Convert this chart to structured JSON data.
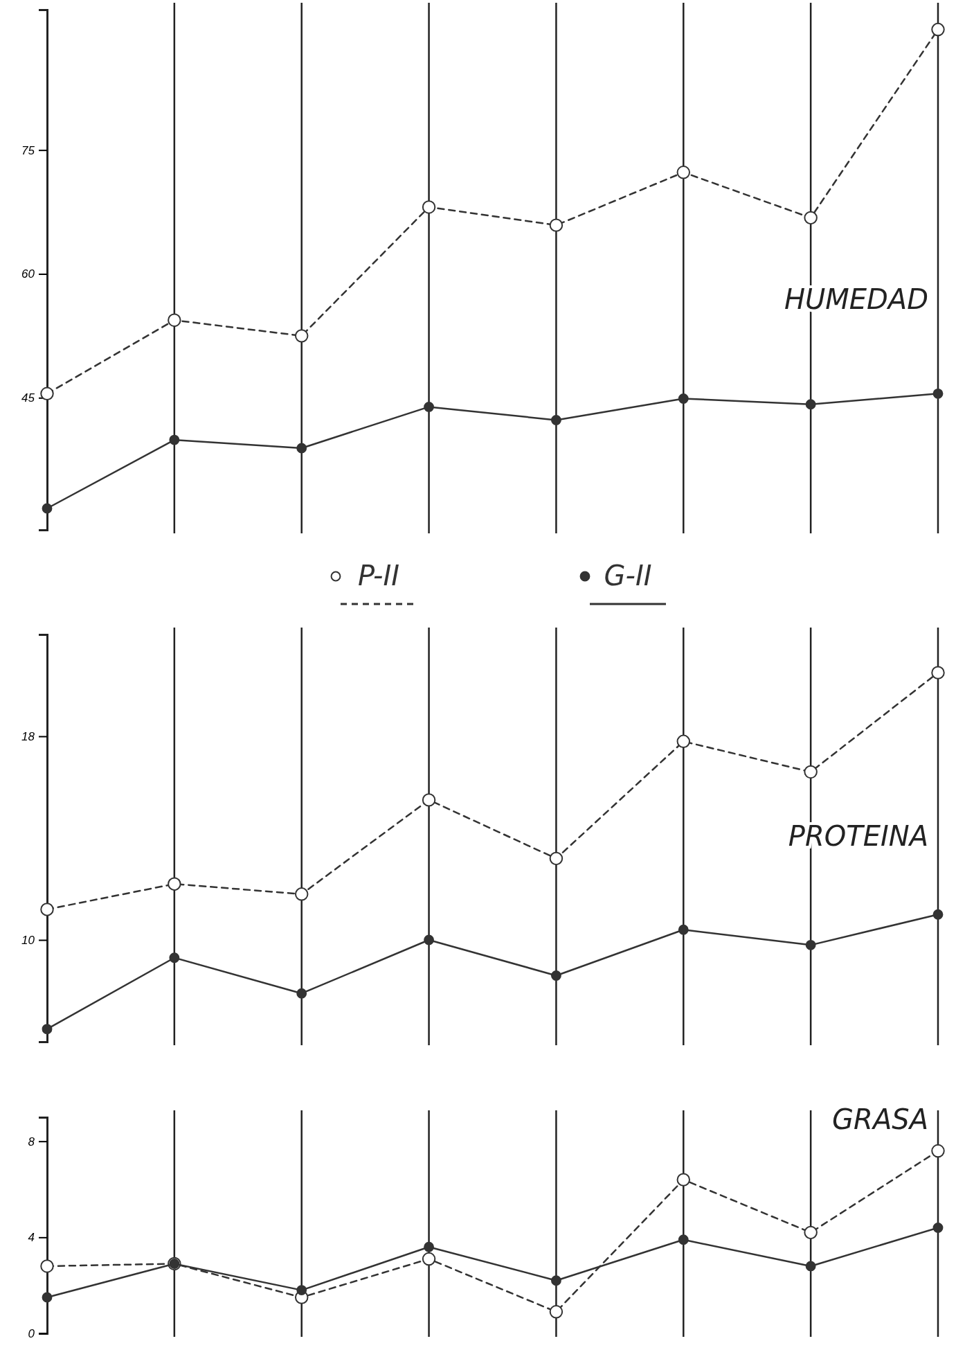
{
  "chart_data": [
    {
      "type": "line",
      "title": "HUMEDAD",
      "categories": [
        null,
        null,
        null,
        null,
        null,
        null,
        null,
        null
      ],
      "ylim": [
        29,
        92
      ],
      "yticks": [
        45,
        60,
        75
      ],
      "grid": "x",
      "legend": "bottom",
      "marker": "circle",
      "series": [
        {
          "name": "P-II",
          "color": "#333333",
          "line_style": "dashed",
          "values": [
            45.5,
            54.4,
            52.5,
            68.1,
            65.9,
            72.3,
            66.8,
            89.6
          ]
        },
        {
          "name": "G-II",
          "color": "#333333",
          "line_style": "solid",
          "values": [
            31.6,
            39.9,
            38.9,
            43.9,
            42.3,
            44.9,
            44.2,
            45.5
          ]
        }
      ]
    },
    {
      "type": "line",
      "title": "PROTEINA",
      "categories": [
        null,
        null,
        null,
        null,
        null,
        null,
        null,
        null
      ],
      "ylim": [
        6,
        22
      ],
      "yticks": [
        10,
        18
      ],
      "grid": "x",
      "marker": "circle",
      "series": [
        {
          "color": "#333333",
          "line_style": "dashed",
          "values": [
            11.2,
            12.2,
            11.8,
            15.5,
            13.2,
            17.8,
            16.6,
            20.5
          ]
        },
        {
          "color": "#333333",
          "line_style": "solid",
          "values": [
            6.5,
            9.3,
            7.9,
            10.0,
            8.6,
            10.4,
            9.8,
            11.0
          ]
        }
      ]
    },
    {
      "type": "line",
      "title": "GRASA",
      "categories": [
        null,
        null,
        null,
        null,
        null,
        null,
        null,
        null
      ],
      "ylim": [
        0,
        9
      ],
      "yticks": [
        0,
        4,
        8
      ],
      "grid": "x",
      "marker": "circle",
      "series": [
        {
          "color": "#333333",
          "line_style": "dashed",
          "values": [
            2.8,
            2.9,
            1.5,
            3.1,
            0.9,
            6.4,
            4.2,
            7.6
          ]
        },
        {
          "color": "#333333",
          "line_style": "solid",
          "values": [
            1.5,
            2.9,
            1.8,
            3.6,
            2.2,
            3.9,
            2.8,
            4.4
          ]
        }
      ]
    }
  ]
}
